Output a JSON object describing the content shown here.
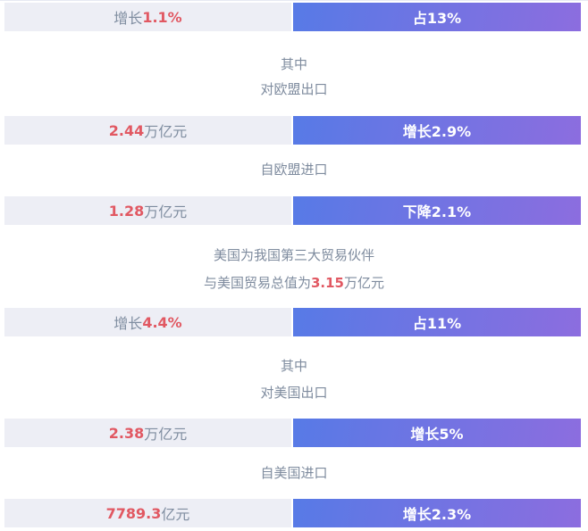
{
  "colors": {
    "cell_bg": "#edeef5",
    "bar_gradient_start": "#577ae6",
    "bar_gradient_end": "#8c6ddf",
    "muted_text": "#7e8b9e",
    "highlight_text": "#e15862",
    "bar_text": "#ffffff",
    "page_bg": "#ffffff"
  },
  "stat_rows": [
    {
      "left": {
        "prefix": "增长",
        "value": "1.1%",
        "suffix": ""
      },
      "right": "占13%"
    },
    {
      "left": {
        "prefix": "",
        "value": "2.44",
        "suffix": "万亿元"
      },
      "right": "增长2.9%"
    },
    {
      "left": {
        "prefix": "",
        "value": "1.28",
        "suffix": "万亿元"
      },
      "right": "下降2.1%"
    },
    {
      "left": {
        "prefix": "增长",
        "value": "4.4%",
        "suffix": ""
      },
      "right": "占11%"
    },
    {
      "left": {
        "prefix": "",
        "value": "2.38",
        "suffix": "万亿元"
      },
      "right": "增长5%"
    },
    {
      "left": {
        "prefix": "",
        "value": "7789.3",
        "suffix": "亿元"
      },
      "right": "增长2.3%"
    }
  ],
  "text_lines": {
    "qizhong_1": "其中",
    "eu_export": "对欧盟出口",
    "eu_import": "自欧盟进口",
    "us_partner": "美国为我国第三大贸易伙伴",
    "us_total": {
      "prefix": "与美国贸易总值为",
      "value": "3.15",
      "suffix": "万亿元"
    },
    "qizhong_2": "其中",
    "us_export": "对美国出口",
    "us_import": "自美国进口"
  },
  "chart_data": {
    "type": "table",
    "columns": [
      "value_cell",
      "share_or_change_bar"
    ],
    "rows": [
      [
        "增长1.1%",
        "占13%"
      ],
      [
        "2.44万亿元",
        "增长2.9%"
      ],
      [
        "1.28万亿元",
        "下降2.1%"
      ],
      [
        "增长4.4%",
        "占11%"
      ],
      [
        "2.38万亿元",
        "增长5%"
      ],
      [
        "7789.3亿元",
        "增长2.3%"
      ]
    ],
    "annotations": [
      "其中",
      "对欧盟出口",
      "自欧盟进口",
      "美国为我国第三大贸易伙伴",
      "与美国贸易总值为3.15万亿元",
      "其中",
      "对美国出口",
      "自美国进口"
    ]
  }
}
